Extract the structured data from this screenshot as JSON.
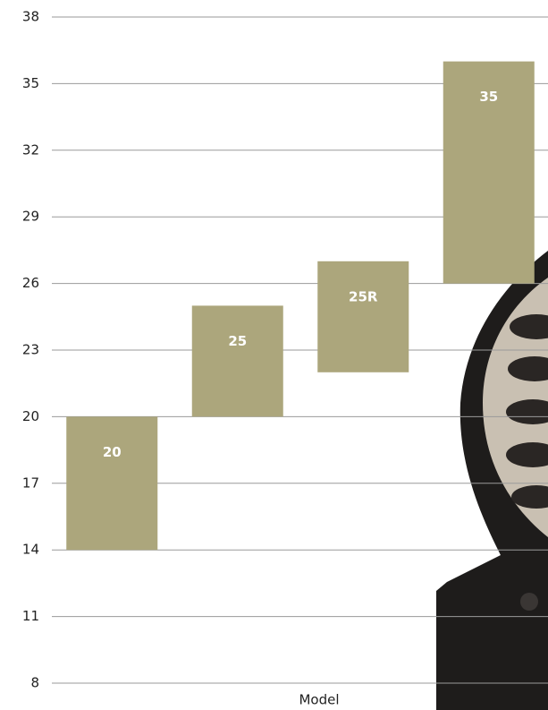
{
  "chart_data": {
    "type": "bar",
    "x_label": "Model",
    "categories": [
      "20",
      "25",
      "25R",
      "35"
    ],
    "low": [
      14,
      20,
      22,
      26
    ],
    "high": [
      20,
      25,
      27,
      36
    ],
    "color": "#aca67c",
    "ylim": [
      8,
      38
    ],
    "yticks": [
      8,
      11,
      14,
      17,
      20,
      23,
      26,
      29,
      32,
      35,
      38
    ],
    "grid": true
  }
}
